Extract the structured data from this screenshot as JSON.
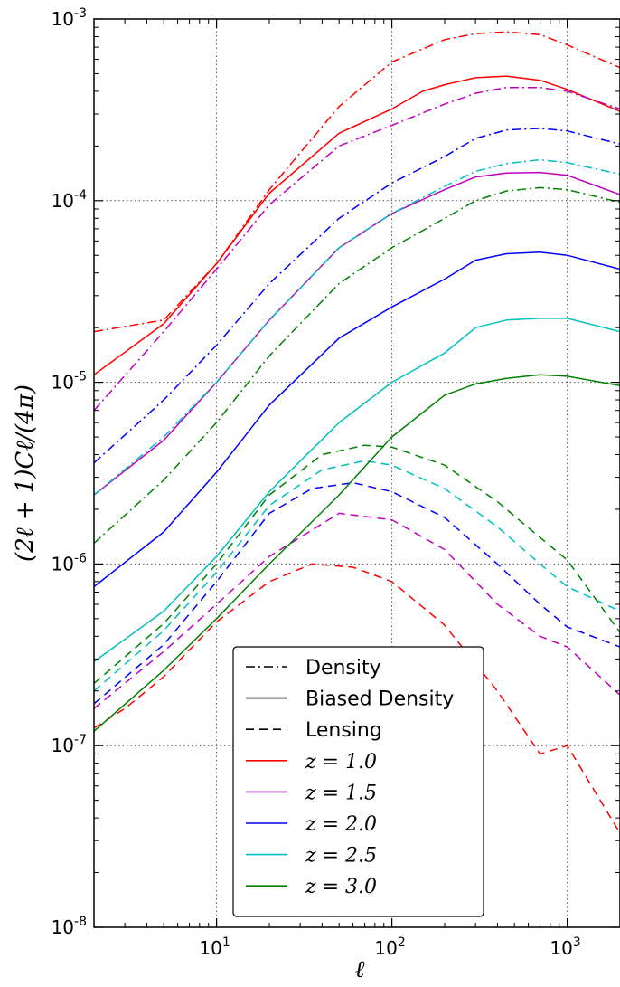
{
  "chart_data": {
    "type": "line",
    "xscale": "log",
    "yscale": "log",
    "xlabel": "ℓ",
    "ylabel": "(2ℓ + 1)Cℓ/(4π)",
    "xlim": [
      2,
      2000
    ],
    "ylim": [
      1e-08,
      0.001
    ],
    "grid": true,
    "grid_style": "dotted",
    "legend_placement": "bottom-center",
    "x_ticks": [
      {
        "value": 10,
        "base": "10",
        "exp": "1"
      },
      {
        "value": 100,
        "base": "10",
        "exp": "2"
      },
      {
        "value": 1000,
        "base": "10",
        "exp": "3"
      }
    ],
    "y_ticks": [
      {
        "value": 1e-08,
        "base": "10",
        "exp": "-8"
      },
      {
        "value": 1e-07,
        "base": "10",
        "exp": "-7"
      },
      {
        "value": 1e-06,
        "base": "10",
        "exp": "-6"
      },
      {
        "value": 1e-05,
        "base": "10",
        "exp": "-5"
      },
      {
        "value": 0.0001,
        "base": "10",
        "exp": "-4"
      },
      {
        "value": 0.001,
        "base": "10",
        "exp": "-3"
      }
    ],
    "legend": [
      {
        "label": "Density",
        "kind": "style",
        "dash": "dashdot"
      },
      {
        "label": "Biased Density",
        "kind": "style",
        "dash": "solid"
      },
      {
        "label": "Lensing",
        "kind": "style",
        "dash": "dashed"
      },
      {
        "label": "z = 1.0",
        "kind": "color",
        "color": "#ff0000"
      },
      {
        "label": "z = 1.5",
        "kind": "color",
        "color": "#bf00bf"
      },
      {
        "label": "z = 2.0",
        "kind": "color",
        "color": "#0000ff"
      },
      {
        "label": "z = 2.5",
        "kind": "color",
        "color": "#00bfbf"
      },
      {
        "label": "z = 3.0",
        "kind": "color",
        "color": "#008000"
      }
    ],
    "series": [
      {
        "z": "1.0",
        "kind": "Density",
        "color": "#ff0000",
        "dash": "dashdot",
        "x": [
          2,
          5,
          10,
          20,
          50,
          100,
          200,
          300,
          450,
          700,
          1000,
          2000
        ],
        "y": [
          1.9e-05,
          2.2e-05,
          4.5e-05,
          0.000115,
          0.00033,
          0.00058,
          0.00077,
          0.00083,
          0.00085,
          0.00082,
          0.00072,
          0.00054
        ]
      },
      {
        "z": "1.0",
        "kind": "Biased Density",
        "color": "#ff0000",
        "dash": "solid",
        "x": [
          2,
          5,
          10,
          20,
          50,
          100,
          150,
          200,
          300,
          450,
          700,
          1000,
          2000
        ],
        "y": [
          1.1e-05,
          2.1e-05,
          4.5e-05,
          0.00011,
          0.000235,
          0.00032,
          0.0004,
          0.000435,
          0.000475,
          0.000485,
          0.00046,
          0.00041,
          0.00031
        ]
      },
      {
        "z": "1.0",
        "kind": "Lensing",
        "color": "#ff0000",
        "dash": "dashed",
        "x": [
          2,
          3,
          5,
          10,
          20,
          35,
          60,
          100,
          200,
          400,
          700,
          1000,
          2000
        ],
        "y": [
          1.25e-07,
          1.6e-07,
          2.4e-07,
          4.8e-07,
          8e-07,
          1e-06,
          9.6e-07,
          8e-07,
          4.6e-07,
          2e-07,
          9e-08,
          1e-07,
          3.3e-08
        ]
      },
      {
        "z": "1.5",
        "kind": "Density",
        "color": "#bf00bf",
        "dash": "dashdot",
        "x": [
          2,
          5,
          10,
          20,
          50,
          100,
          200,
          300,
          450,
          700,
          1000,
          2000
        ],
        "y": [
          7e-06,
          1.9e-05,
          4.2e-05,
          9.5e-05,
          0.0002,
          0.00026,
          0.00034,
          0.00039,
          0.00042,
          0.00042,
          0.0004,
          0.00032
        ]
      },
      {
        "z": "1.5",
        "kind": "Biased Density",
        "color": "#bf00bf",
        "dash": "solid",
        "x": [
          2,
          5,
          10,
          20,
          50,
          100,
          200,
          300,
          450,
          700,
          1000,
          2000
        ],
        "y": [
          2.4e-06,
          4.8e-06,
          1e-05,
          2.2e-05,
          5.5e-05,
          8.5e-05,
          0.000115,
          0.000135,
          0.000142,
          0.000143,
          0.000138,
          0.000108
        ]
      },
      {
        "z": "1.5",
        "kind": "Lensing",
        "color": "#bf00bf",
        "dash": "dashed",
        "x": [
          2,
          5,
          10,
          20,
          50,
          100,
          200,
          400,
          700,
          1000,
          2000
        ],
        "y": [
          1.6e-07,
          3.3e-07,
          6e-07,
          1.1e-06,
          1.9e-06,
          1.75e-06,
          1.2e-06,
          6e-07,
          4e-07,
          3.5e-07,
          1.9e-07
        ]
      },
      {
        "z": "2.0",
        "kind": "Density",
        "color": "#0000ff",
        "dash": "dashdot",
        "x": [
          2,
          5,
          10,
          20,
          50,
          100,
          200,
          300,
          450,
          700,
          1000,
          2000
        ],
        "y": [
          3.6e-06,
          8e-06,
          1.6e-05,
          3.5e-05,
          8e-05,
          0.000125,
          0.000175,
          0.00022,
          0.000245,
          0.00025,
          0.000242,
          0.000205
        ]
      },
      {
        "z": "2.0",
        "kind": "Biased Density",
        "color": "#0000ff",
        "dash": "solid",
        "x": [
          2,
          5,
          10,
          20,
          50,
          100,
          200,
          300,
          450,
          700,
          1000,
          2000
        ],
        "y": [
          7.5e-07,
          1.5e-06,
          3.2e-06,
          7.5e-06,
          1.75e-05,
          2.6e-05,
          3.7e-05,
          4.7e-05,
          5.1e-05,
          5.2e-05,
          5e-05,
          4.2e-05
        ]
      },
      {
        "z": "2.0",
        "kind": "Lensing",
        "color": "#0000ff",
        "dash": "dashed",
        "x": [
          2,
          5,
          10,
          20,
          35,
          60,
          100,
          200,
          400,
          700,
          1000,
          2000
        ],
        "y": [
          1.7e-07,
          3.6e-07,
          8e-07,
          1.9e-06,
          2.6e-06,
          2.8e-06,
          2.5e-06,
          1.8e-06,
          1e-06,
          6e-07,
          4.5e-07,
          3.5e-07
        ]
      },
      {
        "z": "2.5",
        "kind": "Density",
        "color": "#00bfbf",
        "dash": "dashdot",
        "x": [
          2,
          5,
          10,
          20,
          50,
          100,
          200,
          300,
          450,
          700,
          1000,
          2000
        ],
        "y": [
          2.4e-06,
          5e-06,
          1e-05,
          2.2e-05,
          5.5e-05,
          8.5e-05,
          0.00012,
          0.000145,
          0.00016,
          0.000168,
          0.000162,
          0.00014
        ]
      },
      {
        "z": "2.5",
        "kind": "Biased Density",
        "color": "#00bfbf",
        "dash": "solid",
        "x": [
          2,
          5,
          10,
          20,
          50,
          100,
          200,
          300,
          450,
          700,
          1000,
          2000
        ],
        "y": [
          2.9e-07,
          5.5e-07,
          1.1e-06,
          2.5e-06,
          6e-06,
          1e-05,
          1.45e-05,
          2e-05,
          2.2e-05,
          2.25e-05,
          2.25e-05,
          1.9e-05
        ]
      },
      {
        "z": "2.5",
        "kind": "Lensing",
        "color": "#00bfbf",
        "dash": "dashed",
        "x": [
          2,
          5,
          10,
          20,
          40,
          70,
          100,
          200,
          400,
          700,
          1000,
          2000
        ],
        "y": [
          2e-07,
          4.3e-07,
          9e-07,
          2.1e-06,
          3.3e-06,
          3.7e-06,
          3.5e-06,
          2.6e-06,
          1.6e-06,
          1e-06,
          7.5e-07,
          5.5e-07
        ]
      },
      {
        "z": "3.0",
        "kind": "Density",
        "color": "#008000",
        "dash": "dashdot",
        "x": [
          2,
          5,
          10,
          20,
          50,
          100,
          200,
          300,
          450,
          700,
          1000,
          2000
        ],
        "y": [
          1.3e-06,
          2.9e-06,
          6e-06,
          1.4e-05,
          3.5e-05,
          5.5e-05,
          8e-05,
          0.0001,
          0.000113,
          0.000118,
          0.000115,
          9.8e-05
        ]
      },
      {
        "z": "3.0",
        "kind": "Biased Density",
        "color": "#008000",
        "dash": "solid",
        "x": [
          2,
          5,
          10,
          20,
          50,
          100,
          200,
          300,
          450,
          700,
          1000,
          2000
        ],
        "y": [
          1.2e-07,
          2.6e-07,
          5e-07,
          1e-06,
          2.4e-06,
          5e-06,
          8.5e-06,
          9.8e-06,
          1.05e-05,
          1.1e-05,
          1.08e-05,
          9.6e-06
        ]
      },
      {
        "z": "3.0",
        "kind": "Lensing",
        "color": "#008000",
        "dash": "dashed",
        "x": [
          2,
          5,
          10,
          20,
          40,
          70,
          100,
          200,
          400,
          700,
          1000,
          2000
        ],
        "y": [
          2.2e-07,
          4.7e-07,
          1e-06,
          2.4e-06,
          4e-06,
          4.5e-06,
          4.4e-06,
          3.5e-06,
          2.2e-06,
          1.4e-06,
          1.05e-06,
          4.2e-07
        ]
      }
    ]
  }
}
